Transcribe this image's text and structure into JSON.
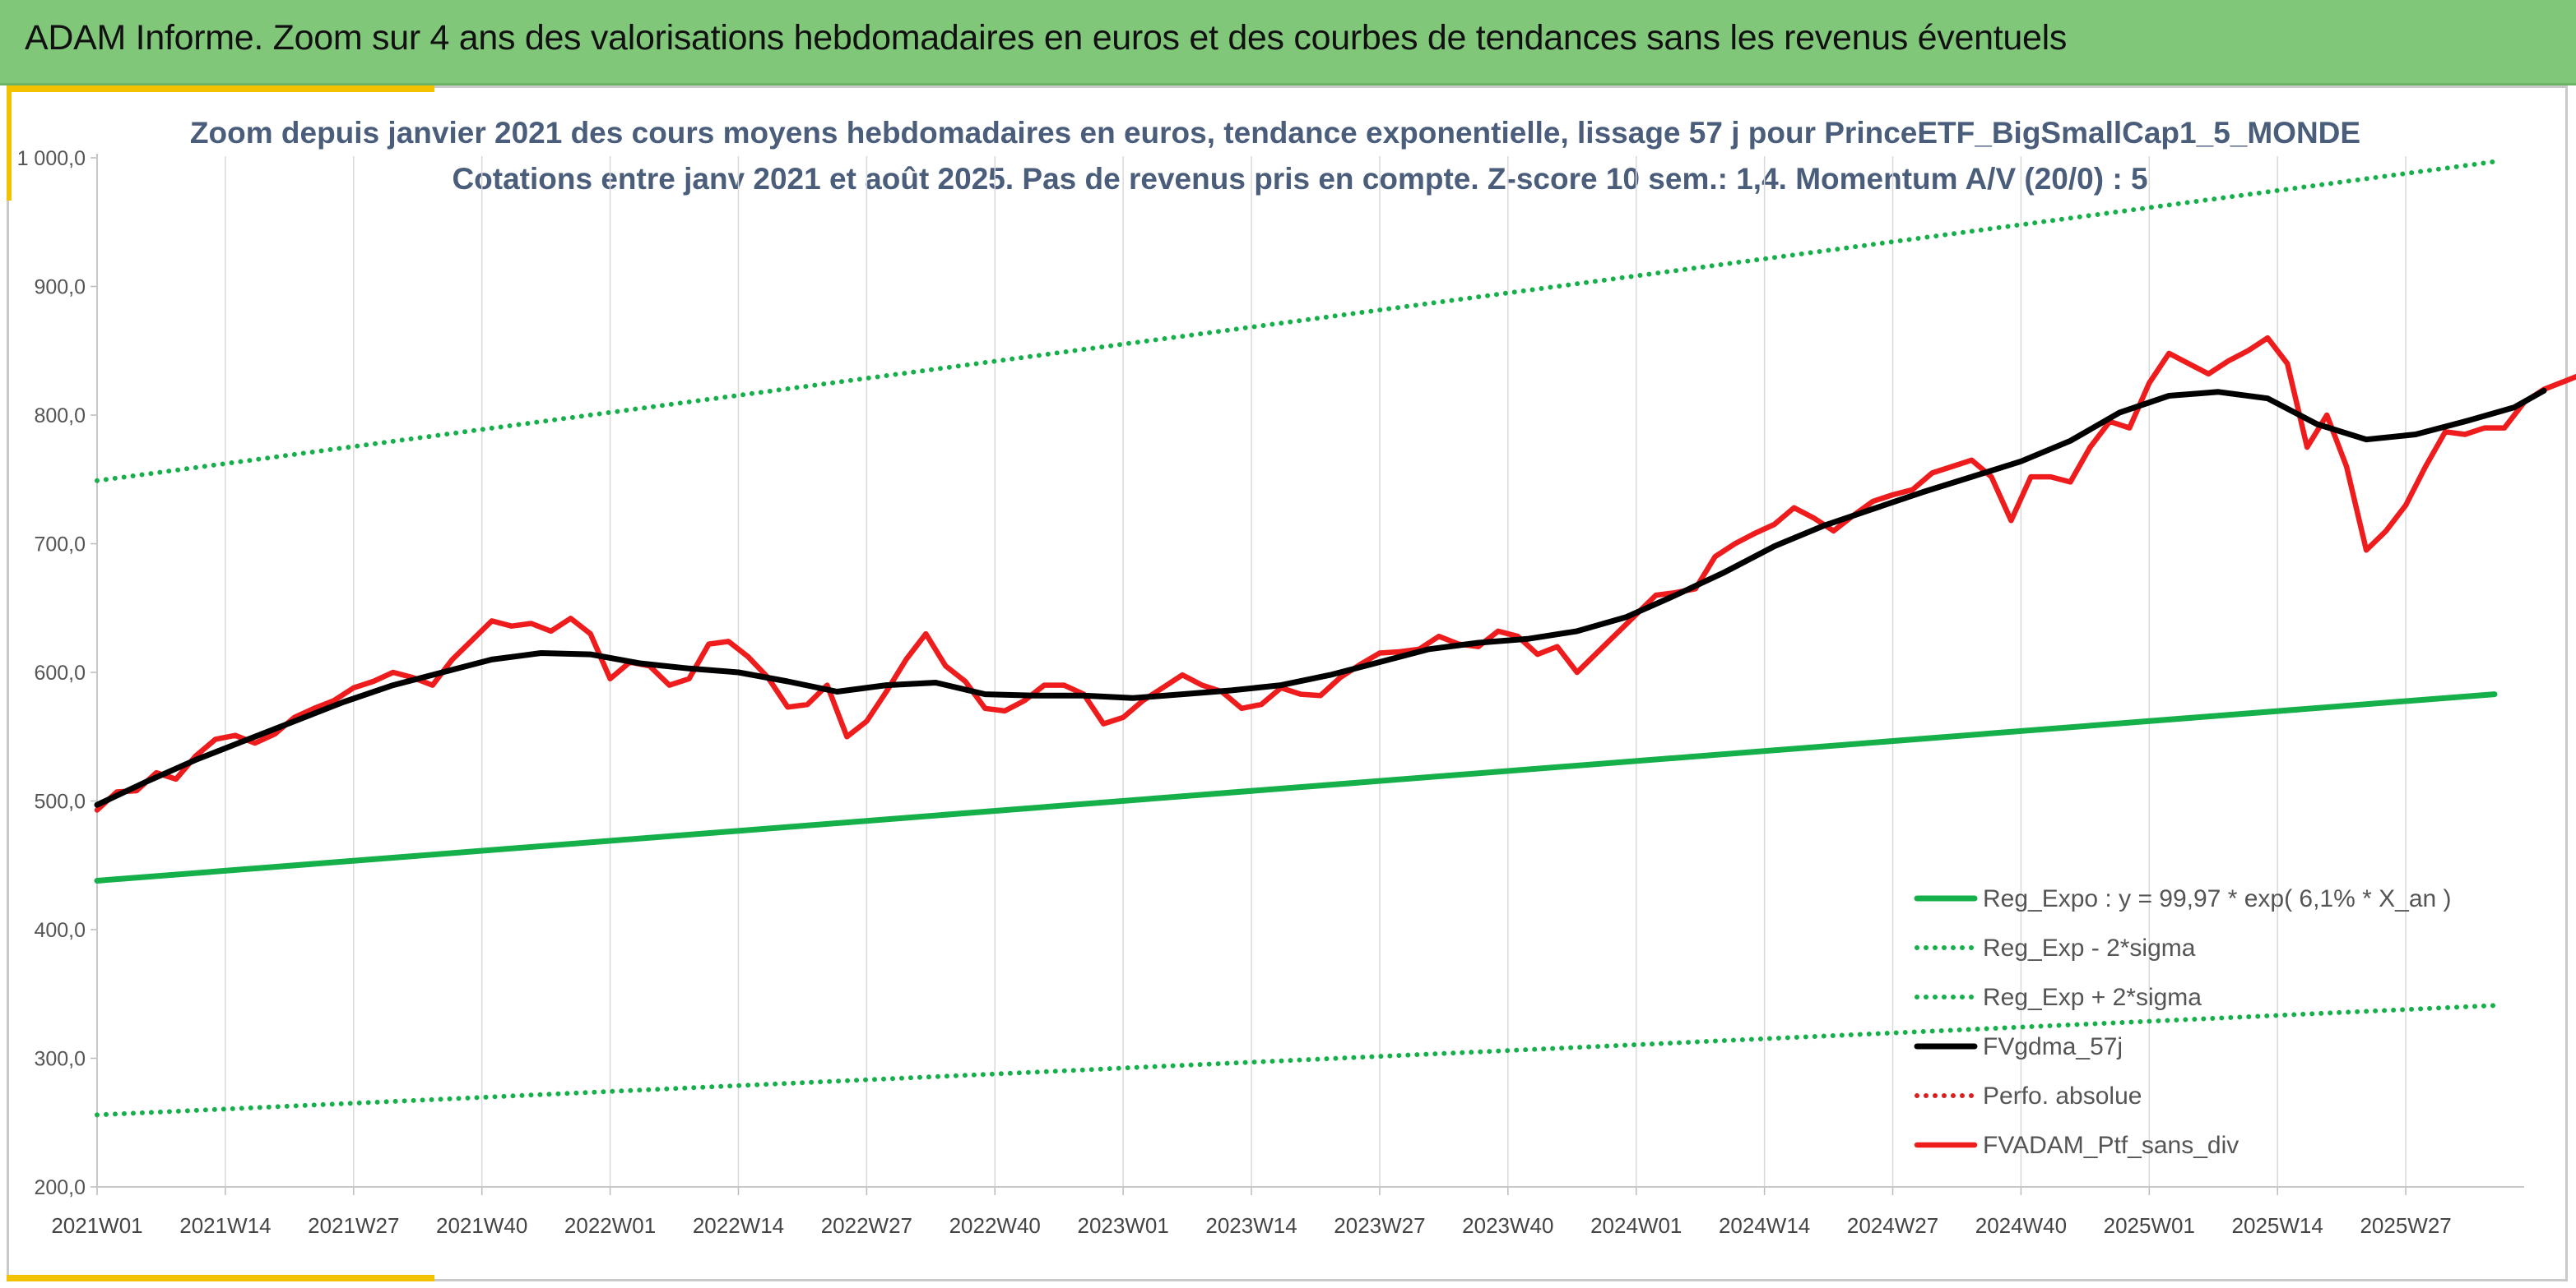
{
  "header": {
    "title": "ADAM Informe. Zoom sur 4 ans des valorisations hebdomadaires en euros et des courbes de tendances sans les revenus éventuels"
  },
  "colors": {
    "header_bg": "#80c77a",
    "accent": "#f2c200",
    "green": "#16b04a",
    "black": "#000000",
    "red": "#ee1c1c",
    "dotted_red": "#d92020"
  },
  "chart_data": {
    "type": "line",
    "title": "Zoom depuis janvier 2021 des cours moyens hebdomadaires en euros, tendance exponentielle, lissage 57 j pour PrinceETF_BigSmallCap1_5_MONDE",
    "subtitle": "Cotations entre janv 2021 et août 2025. Pas de revenus pris en compte. Z-score 10 sem.: 1,4. Momentum A/V (20/0) : 5",
    "ylim": [
      200,
      1000
    ],
    "y_ticks": [
      "200,0",
      "300,0",
      "400,0",
      "500,0",
      "600,0",
      "700,0",
      "800,0",
      "900,0",
      "1 000,0"
    ],
    "x_ticks": [
      "2021W01",
      "2021W14",
      "2021W27",
      "2021W40",
      "2022W01",
      "2022W14",
      "2022W27",
      "2022W40",
      "2023W01",
      "2023W14",
      "2023W27",
      "2023W40",
      "2024W01",
      "2024W14",
      "2024W27",
      "2024W40",
      "2025W01",
      "2025W14",
      "2025W27"
    ],
    "grid": "vertical",
    "legend_position": "bottom-right",
    "series": [
      {
        "name": "Reg_Expo : y = 99,97 * exp( 6,1% *  X_an )",
        "style": "solid",
        "color": "#16b04a",
        "points": [
          [
            "2021W01",
            438
          ],
          [
            "2025W36",
            583
          ]
        ]
      },
      {
        "name": "Reg_Exp - 2*sigma",
        "style": "dotted",
        "color": "#16b04a",
        "points": [
          [
            "2021W01",
            256
          ],
          [
            "2025W36",
            341
          ]
        ]
      },
      {
        "name": "Reg_Exp + 2*sigma",
        "style": "dotted",
        "color": "#16b04a",
        "points": [
          [
            "2021W01",
            749
          ],
          [
            "2025W36",
            997
          ]
        ]
      },
      {
        "name": "FVgdma_57j",
        "style": "solid",
        "color": "#000000",
        "points": [
          [
            0,
            497
          ],
          [
            5,
            515
          ],
          [
            10,
            532
          ],
          [
            15,
            547
          ],
          [
            20,
            562
          ],
          [
            25,
            577
          ],
          [
            30,
            590
          ],
          [
            35,
            600
          ],
          [
            40,
            610
          ],
          [
            45,
            615
          ],
          [
            50,
            614
          ],
          [
            55,
            607
          ],
          [
            60,
            603
          ],
          [
            65,
            600
          ],
          [
            70,
            593
          ],
          [
            75,
            585
          ],
          [
            80,
            590
          ],
          [
            85,
            592
          ],
          [
            90,
            583
          ],
          [
            95,
            582
          ],
          [
            100,
            582
          ],
          [
            105,
            580
          ],
          [
            110,
            583
          ],
          [
            115,
            586
          ],
          [
            120,
            590
          ],
          [
            125,
            598
          ],
          [
            130,
            608
          ],
          [
            135,
            618
          ],
          [
            140,
            623
          ],
          [
            145,
            626
          ],
          [
            150,
            632
          ],
          [
            155,
            643
          ],
          [
            160,
            660
          ],
          [
            165,
            678
          ],
          [
            170,
            698
          ],
          [
            175,
            714
          ],
          [
            180,
            727
          ],
          [
            185,
            740
          ],
          [
            190,
            752
          ],
          [
            195,
            764
          ],
          [
            200,
            780
          ],
          [
            205,
            802
          ],
          [
            210,
            815
          ],
          [
            215,
            818
          ],
          [
            220,
            813
          ],
          [
            225,
            793
          ],
          [
            230,
            781
          ],
          [
            235,
            785
          ],
          [
            240,
            795
          ],
          [
            245,
            806
          ],
          [
            248,
            819
          ]
        ]
      },
      {
        "name": "Perfo. absolue",
        "style": "dotted",
        "color": "#d92020",
        "points": []
      },
      {
        "name": "FVADAM_Ptf_sans_div",
        "style": "solid",
        "color": "#ee1c1c",
        "points": [
          [
            0,
            493
          ],
          [
            2,
            507
          ],
          [
            4,
            508
          ],
          [
            6,
            522
          ],
          [
            8,
            517
          ],
          [
            10,
            535
          ],
          [
            12,
            548
          ],
          [
            14,
            551
          ],
          [
            16,
            545
          ],
          [
            18,
            552
          ],
          [
            20,
            565
          ],
          [
            22,
            572
          ],
          [
            24,
            578
          ],
          [
            26,
            588
          ],
          [
            28,
            593
          ],
          [
            30,
            600
          ],
          [
            32,
            596
          ],
          [
            34,
            590
          ],
          [
            36,
            610
          ],
          [
            38,
            625
          ],
          [
            40,
            640
          ],
          [
            42,
            636
          ],
          [
            44,
            638
          ],
          [
            46,
            632
          ],
          [
            48,
            642
          ],
          [
            50,
            630
          ],
          [
            52,
            595
          ],
          [
            54,
            608
          ],
          [
            56,
            605
          ],
          [
            58,
            590
          ],
          [
            60,
            595
          ],
          [
            62,
            622
          ],
          [
            64,
            624
          ],
          [
            66,
            612
          ],
          [
            68,
            596
          ],
          [
            70,
            573
          ],
          [
            72,
            575
          ],
          [
            74,
            590
          ],
          [
            76,
            550
          ],
          [
            78,
            562
          ],
          [
            80,
            585
          ],
          [
            82,
            610
          ],
          [
            84,
            630
          ],
          [
            86,
            605
          ],
          [
            88,
            593
          ],
          [
            90,
            572
          ],
          [
            92,
            570
          ],
          [
            94,
            578
          ],
          [
            96,
            590
          ],
          [
            98,
            590
          ],
          [
            100,
            583
          ],
          [
            102,
            560
          ],
          [
            104,
            565
          ],
          [
            106,
            578
          ],
          [
            108,
            588
          ],
          [
            110,
            598
          ],
          [
            112,
            590
          ],
          [
            114,
            585
          ],
          [
            116,
            572
          ],
          [
            118,
            575
          ],
          [
            120,
            588
          ],
          [
            122,
            583
          ],
          [
            124,
            582
          ],
          [
            126,
            596
          ],
          [
            128,
            606
          ],
          [
            130,
            615
          ],
          [
            132,
            616
          ],
          [
            134,
            618
          ],
          [
            136,
            628
          ],
          [
            138,
            622
          ],
          [
            140,
            620
          ],
          [
            142,
            632
          ],
          [
            144,
            628
          ],
          [
            146,
            614
          ],
          [
            148,
            620
          ],
          [
            150,
            600
          ],
          [
            152,
            615
          ],
          [
            154,
            630
          ],
          [
            156,
            645
          ],
          [
            158,
            660
          ],
          [
            160,
            662
          ],
          [
            162,
            665
          ],
          [
            164,
            690
          ],
          [
            166,
            700
          ],
          [
            168,
            708
          ],
          [
            170,
            715
          ],
          [
            172,
            728
          ],
          [
            174,
            720
          ],
          [
            176,
            710
          ],
          [
            178,
            722
          ],
          [
            180,
            733
          ],
          [
            182,
            738
          ],
          [
            184,
            742
          ],
          [
            186,
            755
          ],
          [
            188,
            760
          ],
          [
            190,
            765
          ],
          [
            192,
            752
          ],
          [
            194,
            718
          ],
          [
            196,
            752
          ],
          [
            198,
            752
          ],
          [
            200,
            748
          ],
          [
            202,
            775
          ],
          [
            204,
            795
          ],
          [
            206,
            790
          ],
          [
            208,
            825
          ],
          [
            210,
            848
          ],
          [
            212,
            840
          ],
          [
            214,
            832
          ],
          [
            216,
            842
          ],
          [
            218,
            850
          ],
          [
            220,
            860
          ],
          [
            222,
            840
          ],
          [
            224,
            775
          ],
          [
            226,
            800
          ],
          [
            228,
            760
          ],
          [
            230,
            695
          ],
          [
            232,
            710
          ],
          [
            234,
            730
          ],
          [
            236,
            760
          ],
          [
            238,
            787
          ],
          [
            240,
            785
          ],
          [
            242,
            790
          ],
          [
            244,
            790
          ],
          [
            246,
            810
          ],
          [
            248,
            820
          ],
          [
            250,
            826
          ],
          [
            252,
            832
          ]
        ]
      }
    ]
  }
}
